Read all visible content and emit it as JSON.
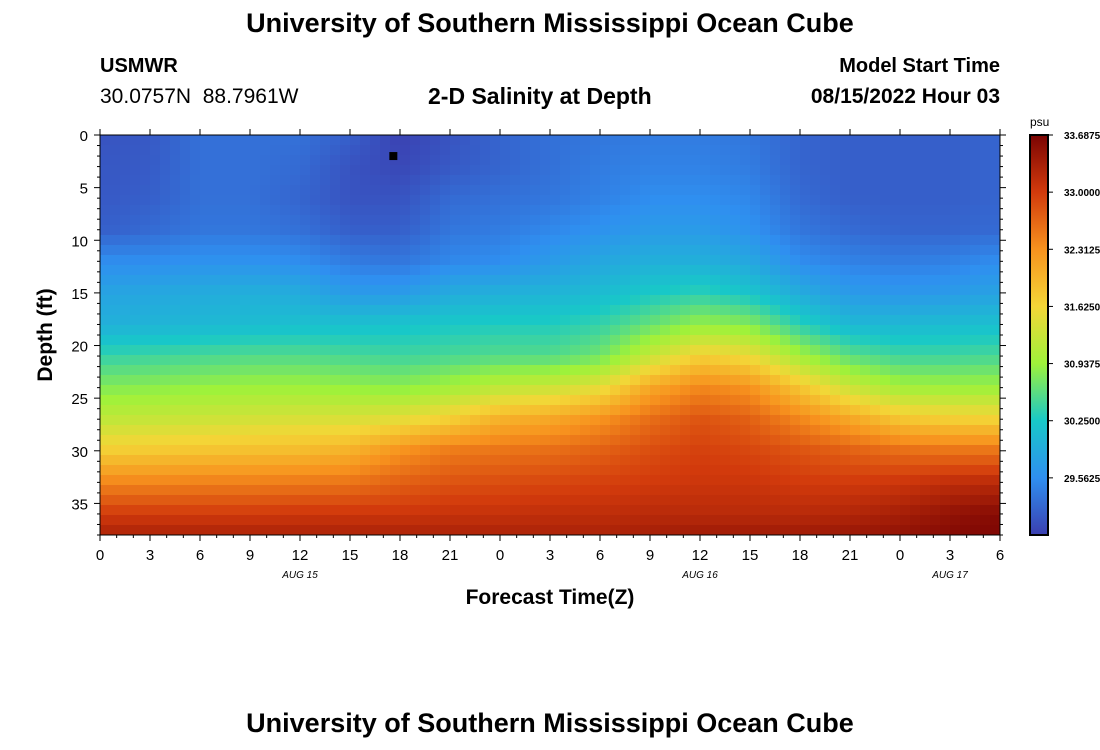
{
  "header": {
    "title": "University of Southern Mississippi Ocean Cube",
    "station": "USMWR",
    "coords": "30.0757N  88.7961W",
    "plot_title": "2-D Salinity at Depth",
    "start_label": "Model Start Time",
    "start_value": "08/15/2022 Hour 03"
  },
  "footer": {
    "title": "University of Southern Mississippi Ocean Cube"
  },
  "chart_data": {
    "type": "heatmap",
    "title": "2-D Salinity at Depth",
    "xlabel": "Forecast Time(Z)",
    "ylabel": "Depth (ft)",
    "x_range_hours": [
      0,
      54
    ],
    "x_ticks": [
      {
        "hour": 0,
        "label": "0"
      },
      {
        "hour": 3,
        "label": "3"
      },
      {
        "hour": 6,
        "label": "6"
      },
      {
        "hour": 9,
        "label": "9"
      },
      {
        "hour": 12,
        "label": "12"
      },
      {
        "hour": 15,
        "label": "15"
      },
      {
        "hour": 18,
        "label": "18"
      },
      {
        "hour": 21,
        "label": "21"
      },
      {
        "hour": 24,
        "label": "0"
      },
      {
        "hour": 27,
        "label": "3"
      },
      {
        "hour": 30,
        "label": "6"
      },
      {
        "hour": 33,
        "label": "9"
      },
      {
        "hour": 36,
        "label": "12"
      },
      {
        "hour": 39,
        "label": "15"
      },
      {
        "hour": 42,
        "label": "18"
      },
      {
        "hour": 45,
        "label": "21"
      },
      {
        "hour": 48,
        "label": "0"
      },
      {
        "hour": 51,
        "label": "3"
      },
      {
        "hour": 54,
        "label": "6"
      }
    ],
    "date_labels": [
      {
        "hour": 12,
        "label": "AUG 15"
      },
      {
        "hour": 36,
        "label": "AUG 16"
      },
      {
        "hour": 51,
        "label": "AUG 17"
      }
    ],
    "y_range_ft": [
      0,
      38
    ],
    "y_ticks": [
      0,
      5,
      10,
      15,
      20,
      25,
      30,
      35
    ],
    "colorbar": {
      "unit": "psu",
      "range": [
        28.875,
        33.6875
      ],
      "ticks": [
        "33.6875",
        "33.0000",
        "32.3125",
        "31.6250",
        "30.9375",
        "30.2500",
        "29.5625"
      ],
      "colors": [
        "#3b3fb0",
        "#2f8ff0",
        "#18c8c8",
        "#9ef23a",
        "#f4d637",
        "#f7921e",
        "#d23a0c",
        "#7a0403"
      ]
    },
    "marker": {
      "hour": 17.6,
      "depth": 2
    },
    "grid": false,
    "depth_profiles_ft": [
      0,
      3,
      6,
      9,
      12,
      15,
      18,
      21,
      24,
      27,
      30,
      33,
      36,
      38
    ],
    "time_columns_hours": [
      0,
      3,
      6,
      9,
      12,
      15,
      18,
      21,
      24,
      27,
      30,
      33,
      36,
      39,
      42,
      45,
      48,
      51,
      54
    ],
    "salinity_psu": [
      [
        29.05,
        29.08,
        29.1,
        29.15,
        29.55,
        29.8,
        29.95,
        30.4,
        30.8,
        31.2,
        31.7,
        32.4,
        33.0,
        33.3
      ],
      [
        29.1,
        29.12,
        29.15,
        29.25,
        29.55,
        29.85,
        30.0,
        30.45,
        30.85,
        31.25,
        31.75,
        32.4,
        33.0,
        33.3
      ],
      [
        29.3,
        29.3,
        29.3,
        29.35,
        29.6,
        29.9,
        30.05,
        30.5,
        30.9,
        31.3,
        31.8,
        32.45,
        33.0,
        33.3
      ],
      [
        29.3,
        29.3,
        29.3,
        29.35,
        29.6,
        29.95,
        30.1,
        30.55,
        30.95,
        31.35,
        31.85,
        32.45,
        33.0,
        33.3
      ],
      [
        29.3,
        29.25,
        29.2,
        29.3,
        29.55,
        29.9,
        30.15,
        30.55,
        30.95,
        31.4,
        31.9,
        32.5,
        33.05,
        33.3
      ],
      [
        29.15,
        29.05,
        29.05,
        29.15,
        29.4,
        29.7,
        30.15,
        30.5,
        30.9,
        31.4,
        32.0,
        32.55,
        33.05,
        33.3
      ],
      [
        28.9,
        28.95,
        29.05,
        29.15,
        29.35,
        29.7,
        30.2,
        30.45,
        30.85,
        31.5,
        32.3,
        32.7,
        33.05,
        33.3
      ],
      [
        29.05,
        29.1,
        29.25,
        29.35,
        29.5,
        29.9,
        30.25,
        30.5,
        31.0,
        31.7,
        32.5,
        32.8,
        33.1,
        33.3
      ],
      [
        29.2,
        29.2,
        29.3,
        29.4,
        29.55,
        29.95,
        30.3,
        30.55,
        31.2,
        32.0,
        32.55,
        32.85,
        33.1,
        33.3
      ],
      [
        29.3,
        29.3,
        29.35,
        29.5,
        29.7,
        30.0,
        30.3,
        30.55,
        31.3,
        32.1,
        32.6,
        32.9,
        33.15,
        33.3
      ],
      [
        29.35,
        29.4,
        29.45,
        29.6,
        29.85,
        30.1,
        30.4,
        30.7,
        31.5,
        32.3,
        32.7,
        32.95,
        33.15,
        33.3
      ],
      [
        29.4,
        29.45,
        29.55,
        29.7,
        29.95,
        30.25,
        30.65,
        31.25,
        32.1,
        32.6,
        32.85,
        33.0,
        33.2,
        33.35
      ],
      [
        29.4,
        29.45,
        29.55,
        29.7,
        29.95,
        30.35,
        30.9,
        31.7,
        32.4,
        32.8,
        32.95,
        33.05,
        33.2,
        33.4
      ],
      [
        29.35,
        29.4,
        29.5,
        29.6,
        29.85,
        30.2,
        30.8,
        31.55,
        32.3,
        32.7,
        32.9,
        33.05,
        33.2,
        33.4
      ],
      [
        29.2,
        29.2,
        29.25,
        29.35,
        29.55,
        29.9,
        30.35,
        31.0,
        31.8,
        32.4,
        32.8,
        33.0,
        33.2,
        33.4
      ],
      [
        29.15,
        29.15,
        29.15,
        29.25,
        29.45,
        29.7,
        30.05,
        30.6,
        31.3,
        32.1,
        32.7,
        33.0,
        33.25,
        33.45
      ],
      [
        29.15,
        29.15,
        29.15,
        29.2,
        29.4,
        29.65,
        30.05,
        30.45,
        31.0,
        31.8,
        32.6,
        33.05,
        33.35,
        33.5
      ],
      [
        29.15,
        29.15,
        29.15,
        29.2,
        29.45,
        29.7,
        30.1,
        30.45,
        30.95,
        31.7,
        32.55,
        33.15,
        33.5,
        33.6
      ],
      [
        29.2,
        29.2,
        29.2,
        29.25,
        29.55,
        29.8,
        30.15,
        30.5,
        30.95,
        31.65,
        32.55,
        33.2,
        33.6,
        33.65
      ]
    ]
  }
}
